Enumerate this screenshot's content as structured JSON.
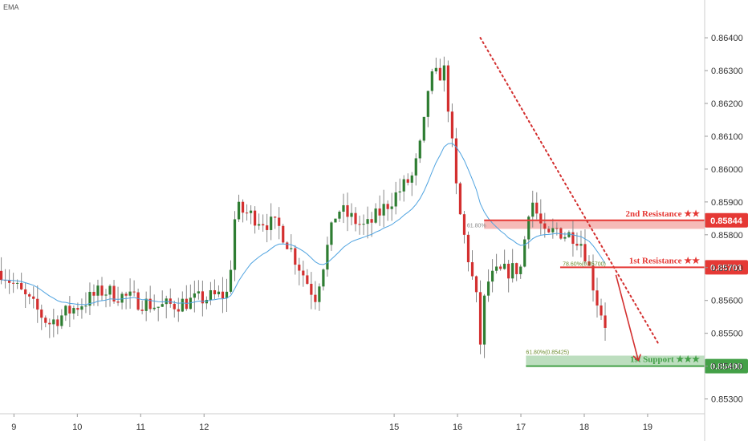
{
  "indicator_label": "EMA",
  "chart_data": {
    "type": "candlestick",
    "y_ticks": [
      0.853,
      0.854,
      0.855,
      0.856,
      0.857,
      0.858,
      0.859,
      0.86,
      0.861,
      0.862,
      0.863,
      0.864
    ],
    "y_tick_labels": [
      "0.85300",
      "0.85400",
      "0.85500",
      "0.85600",
      "0.85700",
      "0.85800",
      "0.85900",
      "0.86000",
      "0.86100",
      "0.86200",
      "0.86300",
      "0.86400"
    ],
    "ylim": [
      0.85255,
      0.86515
    ],
    "x_ticks": [
      9,
      10,
      11,
      12,
      15,
      16,
      17,
      18,
      19
    ],
    "x_tick_labels": [
      "9",
      "10",
      "11",
      "12",
      "15",
      "16",
      "17",
      "18",
      "19"
    ],
    "xlim": [
      8.78,
      19.9
    ],
    "colors": {
      "up": "#2e7d32",
      "down": "#d32f2f",
      "ema": "#4fa3e0",
      "resistance": "#e53935",
      "support": "#43a047",
      "trendline": "#d32f2f"
    },
    "candles": [],
    "levels": [
      {
        "name": "2nd Resistance",
        "stars": "★★",
        "value": 0.85844,
        "badge": "0.85844",
        "zone": [
          0.85818,
          0.85844
        ],
        "zone_start": 16.42
      },
      {
        "name": "1st Resistance",
        "stars": "★★",
        "value": 0.85701,
        "badge": "0.85701",
        "zone_start": 17.62
      },
      {
        "name": "1st Support",
        "stars": "★★★",
        "value": 0.854,
        "badge": "0.85400",
        "zone": [
          0.854,
          0.85432
        ],
        "zone_start": 17.08
      }
    ],
    "fib_labels": [
      {
        "text": "61.80%",
        "x": 16.15,
        "y": 0.85818
      },
      {
        "text": "78.60%(0.85700)",
        "x": 17.66,
        "y": 0.85701
      },
      {
        "text": "61.80%(0.85425)",
        "x": 17.08,
        "y": 0.85432
      }
    ],
    "trendline": {
      "start": [
        16.36,
        0.864
      ],
      "end": [
        19.18,
        0.85465
      ]
    },
    "forecast_arrow": {
      "start": [
        18.5,
        0.85678
      ],
      "end": [
        18.85,
        0.8542
      ]
    }
  }
}
